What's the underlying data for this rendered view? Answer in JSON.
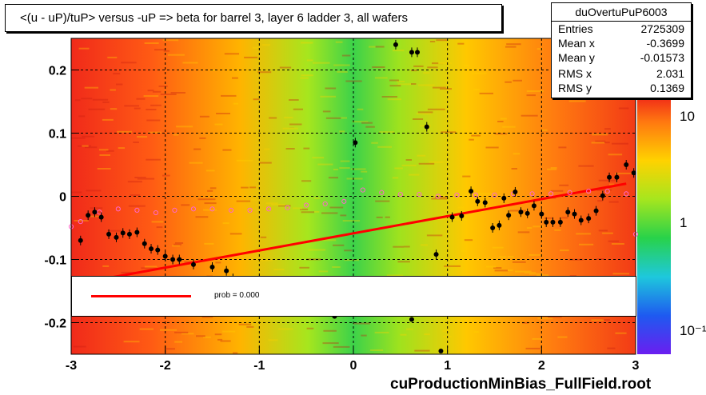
{
  "title": "<(u - uP)/tuP> versus  -uP => beta for barrel 3, layer 6 ladder 3, all wafers",
  "stats": {
    "name": "duOvertuPuP6003",
    "rows": [
      {
        "label": "Entries",
        "value": "2725309"
      },
      {
        "label": "Mean x",
        "value": "-0.3699"
      },
      {
        "label": "Mean y",
        "value": "-0.01573"
      },
      {
        "label": "RMS x",
        "value": "2.031"
      },
      {
        "label": "RMS y",
        "value": "0.1369"
      }
    ]
  },
  "legend": {
    "text": "prob = 0.000",
    "line_color": "#ff0000"
  },
  "footer": "cuProductionMinBias_FullField.root",
  "colors": {
    "fit_line": "#ff0000",
    "profile_points": "#000000",
    "open_markers": "#ff66cc"
  },
  "chart_data": {
    "type": "heatmap",
    "xlim": [
      -3,
      3
    ],
    "ylim": [
      -0.25,
      0.25
    ],
    "x_ticks": [
      "-3",
      "-2",
      "-1",
      "0",
      "1",
      "2",
      "3"
    ],
    "y_ticks": [
      "-0.2",
      "-0.1",
      "0",
      "0.1",
      "0.2"
    ],
    "z_scale": "log",
    "z_ticks": [
      "10",
      "1",
      "10⁻¹"
    ],
    "grid": true,
    "fit_line": {
      "x": [
        -3,
        2.9
      ],
      "y": [
        -0.14,
        0.02
      ]
    },
    "profile": {
      "x": [
        -2.9,
        -2.82,
        -2.75,
        -2.68,
        -2.6,
        -2.52,
        -2.45,
        -2.38,
        -2.3,
        -2.22,
        -2.15,
        -2.08,
        -2.0,
        -1.92,
        -1.85,
        -1.7,
        -1.5,
        -1.35,
        -1.28,
        0.02,
        0.45,
        0.62,
        0.68,
        0.78,
        0.88,
        1.05,
        1.15,
        1.25,
        1.32,
        1.4,
        1.48,
        1.55,
        1.6,
        1.65,
        1.72,
        1.78,
        1.85,
        1.92,
        2.0,
        2.05,
        2.12,
        2.2,
        2.28,
        2.35,
        2.42,
        2.5,
        2.58,
        2.65,
        2.72,
        2.8,
        2.9,
        2.98
      ],
      "y": [
        -0.07,
        -0.03,
        -0.025,
        -0.033,
        -0.06,
        -0.065,
        -0.058,
        -0.06,
        -0.057,
        -0.075,
        -0.083,
        -0.085,
        -0.095,
        -0.1,
        -0.1,
        -0.108,
        -0.112,
        -0.118,
        -0.13,
        0.085,
        0.24,
        0.228,
        0.228,
        0.11,
        -0.092,
        -0.033,
        -0.031,
        0.008,
        -0.008,
        -0.01,
        -0.05,
        -0.046,
        -0.003,
        -0.03,
        0.007,
        -0.025,
        -0.027,
        -0.015,
        -0.028,
        -0.041,
        -0.041,
        -0.041,
        -0.025,
        -0.028,
        -0.038,
        -0.035,
        -0.023,
        0.001,
        0.03,
        0.03,
        0.05,
        0.037
      ],
      "low_y": [
        -0.19,
        -0.195,
        -0.245
      ]
    },
    "open_markers": {
      "x": [
        -3.0,
        -2.9,
        -2.7,
        -2.5,
        -2.3,
        -2.1,
        -1.9,
        -1.7,
        -1.5,
        -1.3,
        -1.1,
        -0.9,
        -0.7,
        -0.5,
        -0.3,
        -0.1,
        0.1,
        0.3,
        0.5,
        0.7,
        0.9,
        1.1,
        1.3,
        1.5,
        1.7,
        1.9,
        2.1,
        2.3,
        2.5,
        2.7,
        2.9,
        3.0
      ],
      "y": [
        -0.048,
        -0.04,
        -0.025,
        -0.02,
        -0.022,
        -0.026,
        -0.022,
        -0.02,
        -0.02,
        -0.022,
        -0.022,
        -0.02,
        -0.018,
        -0.014,
        -0.012,
        -0.008,
        0.01,
        0.006,
        0.003,
        0.003,
        0.0,
        0.002,
        0.002,
        0.002,
        0.004,
        0.004,
        0.004,
        0.006,
        0.008,
        0.008,
        0.004,
        -0.06
      ]
    }
  }
}
